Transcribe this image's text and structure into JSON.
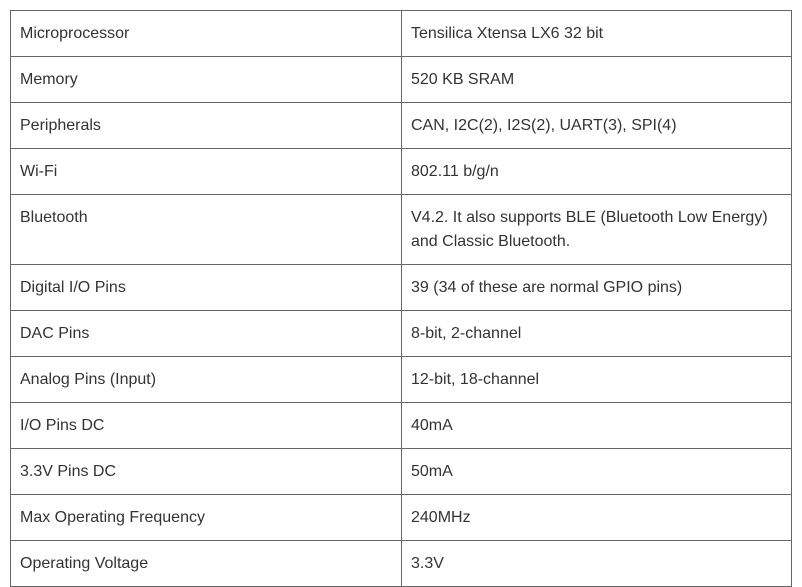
{
  "table": {
    "rows": [
      [
        "Microprocessor",
        "Tensilica Xtensa LX6 32 bit"
      ],
      [
        "Memory",
        "520 KB SRAM"
      ],
      [
        "Peripherals",
        "CAN, I2C(2), I2S(2), UART(3), SPI(4)"
      ],
      [
        "Wi-Fi",
        "802.11 b/g/n"
      ],
      [
        "Bluetooth",
        "V4.2. It also supports BLE (Bluetooth Low Energy) and Classic Bluetooth."
      ],
      [
        "Digital I/O Pins",
        "39 (34 of these are normal GPIO pins)"
      ],
      [
        "DAC Pins",
        "8-bit, 2-channel"
      ],
      [
        "Analog Pins (Input)",
        "12-bit, 18-channel"
      ],
      [
        "I/O Pins DC",
        "40mA"
      ],
      [
        "3.3V Pins DC",
        "50mA"
      ],
      [
        "Max Operating Frequency",
        "240MHz"
      ],
      [
        "Operating Voltage",
        "3.3V"
      ]
    ]
  }
}
